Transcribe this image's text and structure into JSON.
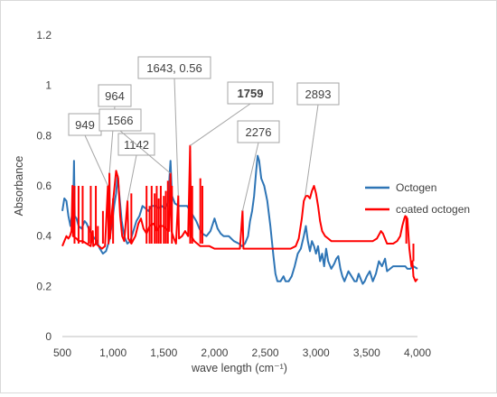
{
  "chart_data": {
    "type": "line",
    "title": "",
    "xlabel": "wave length (cm⁻¹)",
    "ylabel": "Absorbance",
    "xlim": [
      500,
      4000
    ],
    "ylim": [
      0,
      1.2
    ],
    "x_ticks": [
      500,
      1000,
      1500,
      2000,
      2500,
      3000,
      3500,
      4000
    ],
    "x_tick_labels": [
      "500",
      "1,000",
      "1,500",
      "2,000",
      "2,500",
      "3,000",
      "3,500",
      "4,000"
    ],
    "y_ticks": [
      0,
      0.2,
      0.4,
      0.6,
      0.8,
      1,
      1.2
    ],
    "y_tick_labels": [
      "0",
      "0.2",
      "0.4",
      "0.6",
      "0.8",
      "1",
      "1.2"
    ],
    "grid": false,
    "legend_position": "right",
    "series": [
      {
        "name": "Octogen",
        "color": "#2e75b6",
        "points": [
          [
            500,
            0.5
          ],
          [
            520,
            0.55
          ],
          [
            540,
            0.54
          ],
          [
            560,
            0.48
          ],
          [
            580,
            0.44
          ],
          [
            600,
            0.5
          ],
          [
            610,
            0.6
          ],
          [
            615,
            0.7
          ],
          [
            622,
            0.48
          ],
          [
            640,
            0.47
          ],
          [
            660,
            0.44
          ],
          [
            690,
            0.43
          ],
          [
            720,
            0.46
          ],
          [
            740,
            0.45
          ],
          [
            770,
            0.42
          ],
          [
            800,
            0.4
          ],
          [
            840,
            0.38
          ],
          [
            870,
            0.35
          ],
          [
            900,
            0.33
          ],
          [
            930,
            0.34
          ],
          [
            960,
            0.38
          ],
          [
            990,
            0.45
          ],
          [
            1010,
            0.52
          ],
          [
            1030,
            0.57
          ],
          [
            1045,
            0.64
          ],
          [
            1060,
            0.57
          ],
          [
            1085,
            0.46
          ],
          [
            1110,
            0.4
          ],
          [
            1140,
            0.37
          ],
          [
            1170,
            0.38
          ],
          [
            1200,
            0.42
          ],
          [
            1230,
            0.46
          ],
          [
            1260,
            0.48
          ],
          [
            1290,
            0.52
          ],
          [
            1320,
            0.51
          ],
          [
            1350,
            0.5
          ],
          [
            1380,
            0.52
          ],
          [
            1420,
            0.52
          ],
          [
            1450,
            0.51
          ],
          [
            1480,
            0.52
          ],
          [
            1510,
            0.51
          ],
          [
            1540,
            0.53
          ],
          [
            1560,
            0.66
          ],
          [
            1566,
            0.7
          ],
          [
            1580,
            0.56
          ],
          [
            1610,
            0.53
          ],
          [
            1650,
            0.52
          ],
          [
            1700,
            0.52
          ],
          [
            1730,
            0.52
          ],
          [
            1760,
            0.5
          ],
          [
            1790,
            0.48
          ],
          [
            1820,
            0.46
          ],
          [
            1850,
            0.43
          ],
          [
            1880,
            0.41
          ],
          [
            1920,
            0.4
          ],
          [
            1960,
            0.42
          ],
          [
            2000,
            0.47
          ],
          [
            2030,
            0.43
          ],
          [
            2060,
            0.41
          ],
          [
            2090,
            0.4
          ],
          [
            2140,
            0.4
          ],
          [
            2190,
            0.38
          ],
          [
            2240,
            0.37
          ],
          [
            2270,
            0.36
          ],
          [
            2300,
            0.37
          ],
          [
            2330,
            0.4
          ],
          [
            2350,
            0.46
          ],
          [
            2370,
            0.5
          ],
          [
            2390,
            0.56
          ],
          [
            2410,
            0.66
          ],
          [
            2425,
            0.72
          ],
          [
            2440,
            0.7
          ],
          [
            2460,
            0.63
          ],
          [
            2490,
            0.6
          ],
          [
            2520,
            0.54
          ],
          [
            2550,
            0.44
          ],
          [
            2580,
            0.32
          ],
          [
            2600,
            0.25
          ],
          [
            2620,
            0.22
          ],
          [
            2650,
            0.22
          ],
          [
            2680,
            0.24
          ],
          [
            2700,
            0.22
          ],
          [
            2730,
            0.22
          ],
          [
            2760,
            0.24
          ],
          [
            2790,
            0.28
          ],
          [
            2820,
            0.33
          ],
          [
            2850,
            0.35
          ],
          [
            2880,
            0.4
          ],
          [
            2900,
            0.44
          ],
          [
            2920,
            0.38
          ],
          [
            2940,
            0.34
          ],
          [
            2960,
            0.38
          ],
          [
            2980,
            0.36
          ],
          [
            3000,
            0.33
          ],
          [
            3020,
            0.36
          ],
          [
            3040,
            0.3
          ],
          [
            3060,
            0.33
          ],
          [
            3080,
            0.28
          ],
          [
            3100,
            0.35
          ],
          [
            3120,
            0.3
          ],
          [
            3150,
            0.27
          ],
          [
            3180,
            0.29
          ],
          [
            3200,
            0.31
          ],
          [
            3220,
            0.32
          ],
          [
            3240,
            0.27
          ],
          [
            3260,
            0.24
          ],
          [
            3280,
            0.22
          ],
          [
            3300,
            0.24
          ],
          [
            3320,
            0.26
          ],
          [
            3350,
            0.24
          ],
          [
            3380,
            0.22
          ],
          [
            3400,
            0.22
          ],
          [
            3420,
            0.25
          ],
          [
            3440,
            0.23
          ],
          [
            3460,
            0.21
          ],
          [
            3480,
            0.22
          ],
          [
            3500,
            0.24
          ],
          [
            3530,
            0.26
          ],
          [
            3560,
            0.22
          ],
          [
            3590,
            0.25
          ],
          [
            3620,
            0.3
          ],
          [
            3650,
            0.28
          ],
          [
            3680,
            0.31
          ],
          [
            3700,
            0.26
          ],
          [
            3730,
            0.27
          ],
          [
            3760,
            0.28
          ],
          [
            3800,
            0.28
          ],
          [
            3840,
            0.28
          ],
          [
            3880,
            0.28
          ],
          [
            3900,
            0.27
          ],
          [
            3930,
            0.27
          ],
          [
            3960,
            0.28
          ],
          [
            4000,
            0.27
          ]
        ]
      },
      {
        "name": "coated octogen",
        "color": "#ff0000",
        "points": [
          [
            500,
            0.36
          ],
          [
            520,
            0.38
          ],
          [
            540,
            0.4
          ],
          [
            560,
            0.39
          ],
          [
            575,
            0.4
          ],
          [
            590,
            0.42
          ],
          [
            600,
            0.6
          ],
          [
            605,
            0.4
          ],
          [
            640,
            0.39
          ],
          [
            660,
            0.38
          ],
          [
            700,
            0.38
          ],
          [
            740,
            0.37
          ],
          [
            780,
            0.36
          ],
          [
            800,
            0.42
          ],
          [
            805,
            0.36
          ],
          [
            830,
            0.37
          ],
          [
            860,
            0.36
          ],
          [
            890,
            0.35
          ],
          [
            920,
            0.36
          ],
          [
            949,
            0.6
          ],
          [
            955,
            0.37
          ],
          [
            964,
            0.65
          ],
          [
            970,
            0.39
          ],
          [
            990,
            0.5
          ],
          [
            1010,
            0.58
          ],
          [
            1030,
            0.66
          ],
          [
            1050,
            0.63
          ],
          [
            1070,
            0.48
          ],
          [
            1090,
            0.4
          ],
          [
            1110,
            0.38
          ],
          [
            1142,
            0.54
          ],
          [
            1150,
            0.39
          ],
          [
            1180,
            0.37
          ],
          [
            1220,
            0.4
          ],
          [
            1250,
            0.45
          ],
          [
            1275,
            0.47
          ],
          [
            1300,
            0.43
          ],
          [
            1330,
            0.41
          ],
          [
            1360,
            0.44
          ],
          [
            1400,
            0.45
          ],
          [
            1430,
            0.42
          ],
          [
            1460,
            0.44
          ],
          [
            1490,
            0.44
          ],
          [
            1520,
            0.43
          ],
          [
            1550,
            0.42
          ],
          [
            1566,
            0.65
          ],
          [
            1575,
            0.42
          ],
          [
            1600,
            0.39
          ],
          [
            1620,
            0.37
          ],
          [
            1643,
            0.56
          ],
          [
            1650,
            0.39
          ],
          [
            1680,
            0.4
          ],
          [
            1710,
            0.42
          ],
          [
            1740,
            0.4
          ],
          [
            1759,
            0.76
          ],
          [
            1770,
            0.4
          ],
          [
            1800,
            0.38
          ],
          [
            1830,
            0.37
          ],
          [
            1860,
            0.36
          ],
          [
            1900,
            0.36
          ],
          [
            1950,
            0.36
          ],
          [
            2000,
            0.35
          ],
          [
            2100,
            0.35
          ],
          [
            2200,
            0.35
          ],
          [
            2250,
            0.35
          ],
          [
            2276,
            0.5
          ],
          [
            2285,
            0.35
          ],
          [
            2350,
            0.35
          ],
          [
            2500,
            0.35
          ],
          [
            2650,
            0.35
          ],
          [
            2750,
            0.35
          ],
          [
            2800,
            0.36
          ],
          [
            2830,
            0.39
          ],
          [
            2860,
            0.47
          ],
          [
            2880,
            0.54
          ],
          [
            2900,
            0.56
          ],
          [
            2920,
            0.56
          ],
          [
            2940,
            0.55
          ],
          [
            2960,
            0.58
          ],
          [
            2980,
            0.6
          ],
          [
            3000,
            0.57
          ],
          [
            3020,
            0.52
          ],
          [
            3040,
            0.46
          ],
          [
            3060,
            0.42
          ],
          [
            3090,
            0.4
          ],
          [
            3120,
            0.39
          ],
          [
            3150,
            0.38
          ],
          [
            3200,
            0.38
          ],
          [
            3300,
            0.38
          ],
          [
            3400,
            0.38
          ],
          [
            3500,
            0.38
          ],
          [
            3560,
            0.38
          ],
          [
            3600,
            0.39
          ],
          [
            3640,
            0.42
          ],
          [
            3660,
            0.41
          ],
          [
            3700,
            0.37
          ],
          [
            3760,
            0.37
          ],
          [
            3800,
            0.38
          ],
          [
            3830,
            0.4
          ],
          [
            3850,
            0.44
          ],
          [
            3870,
            0.47
          ],
          [
            3880,
            0.48
          ],
          [
            3900,
            0.47
          ],
          [
            3920,
            0.35
          ],
          [
            3940,
            0.28
          ],
          [
            3950,
            0.3
          ],
          [
            3960,
            0.24
          ],
          [
            3980,
            0.22
          ],
          [
            4000,
            0.23
          ]
        ],
        "spikes": [
          [
            620,
            0.6
          ],
          [
            660,
            0.6
          ],
          [
            700,
            0.6
          ],
          [
            760,
            0.44
          ],
          [
            780,
            0.6
          ],
          [
            830,
            0.6
          ],
          [
            850,
            0.44
          ],
          [
            900,
            0.5
          ],
          [
            1000,
            0.55
          ],
          [
            1180,
            0.57
          ],
          [
            1330,
            0.6
          ],
          [
            1360,
            0.52
          ],
          [
            1380,
            0.6
          ],
          [
            1410,
            0.57
          ],
          [
            1430,
            0.6
          ],
          [
            1450,
            0.55
          ],
          [
            1470,
            0.6
          ],
          [
            1500,
            0.56
          ],
          [
            1520,
            0.58
          ],
          [
            1540,
            0.62
          ],
          [
            1580,
            0.6
          ],
          [
            1760,
            0.74
          ],
          [
            1780,
            0.6
          ],
          [
            1860,
            0.63
          ],
          [
            1880,
            0.6
          ],
          [
            3890,
            0.48
          ],
          [
            3960,
            0.3
          ]
        ]
      }
    ],
    "annotations": [
      {
        "label": "949",
        "x": 949,
        "y": 0.6
      },
      {
        "label": "964",
        "x": 964,
        "y": 0.65
      },
      {
        "label": "1142",
        "x": 1142,
        "y": 0.54
      },
      {
        "label": "1566",
        "x": 1566,
        "y": 0.65
      },
      {
        "label": "1643, 0.56",
        "x": 1643,
        "y": 0.56
      },
      {
        "label": "1759",
        "x": 1759,
        "y": 0.76
      },
      {
        "label": "2276",
        "x": 2276,
        "y": 0.5
      },
      {
        "label": "2893",
        "x": 2893,
        "y": 0.56
      }
    ]
  }
}
